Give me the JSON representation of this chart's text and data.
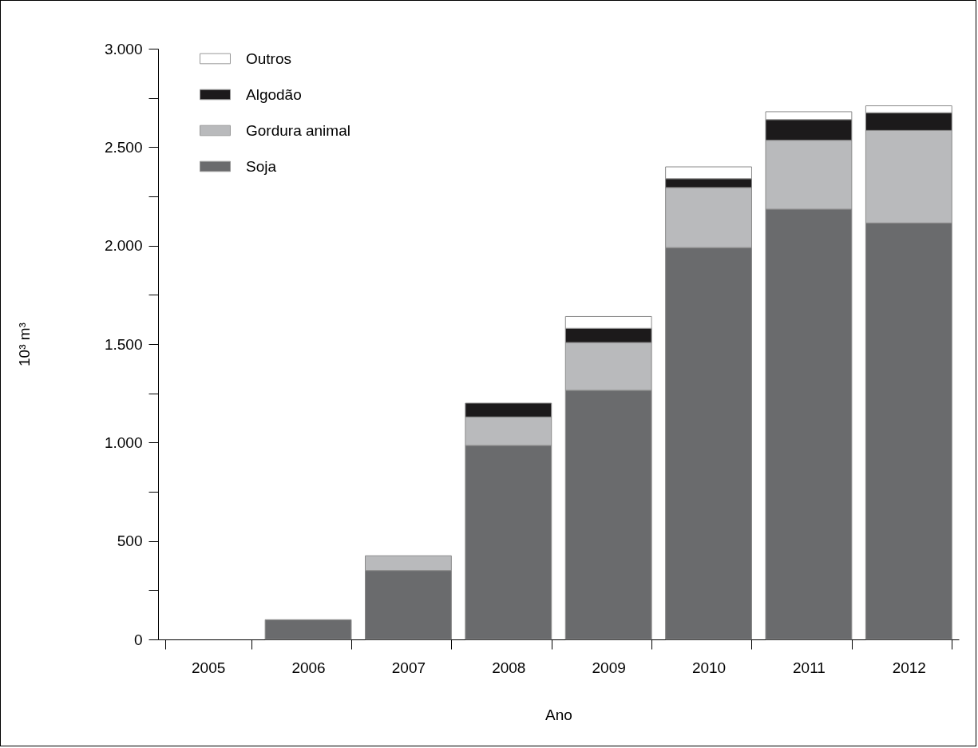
{
  "chart_data": {
    "type": "bar",
    "stacked": true,
    "xlabel": "Ano",
    "ylabel": "10³ m³",
    "categories": [
      "2005",
      "2006",
      "2007",
      "2008",
      "2009",
      "2010",
      "2011",
      "2012"
    ],
    "series": [
      {
        "name": "Soja",
        "color": "#6a6b6d",
        "values": [
          null,
          100,
          350,
          985,
          1265,
          1990,
          2185,
          2115
        ]
      },
      {
        "name": "Gordura animal",
        "color": "#b9babc",
        "values": [
          null,
          null,
          75,
          145,
          243,
          305,
          350,
          470
        ]
      },
      {
        "name": "Algodão",
        "color": "#1c1a1b",
        "values": [
          null,
          null,
          null,
          70,
          72,
          45,
          105,
          90
        ]
      },
      {
        "name": "Outros",
        "color": "#ffffff",
        "values": [
          null,
          null,
          null,
          null,
          60,
          60,
          40,
          35
        ]
      }
    ],
    "ylim": [
      0,
      3000
    ],
    "yticks": [
      0,
      {
        "value": 250,
        "label": null
      },
      {
        "value": 500,
        "label": "500"
      },
      {
        "value": 750,
        "label": null
      },
      {
        "value": 1000,
        "label": "1.000"
      },
      {
        "value": 1250,
        "label": null
      },
      {
        "value": 1500,
        "label": "1.500"
      },
      {
        "value": 1750,
        "label": null
      },
      {
        "value": 2000,
        "label": "2.000"
      },
      {
        "value": 2250,
        "label": null
      },
      {
        "value": 2500,
        "label": "2.500"
      },
      {
        "value": 2750,
        "label": null
      },
      {
        "value": 3000,
        "label": "3.000"
      }
    ],
    "grid": false,
    "legend": "top left"
  }
}
